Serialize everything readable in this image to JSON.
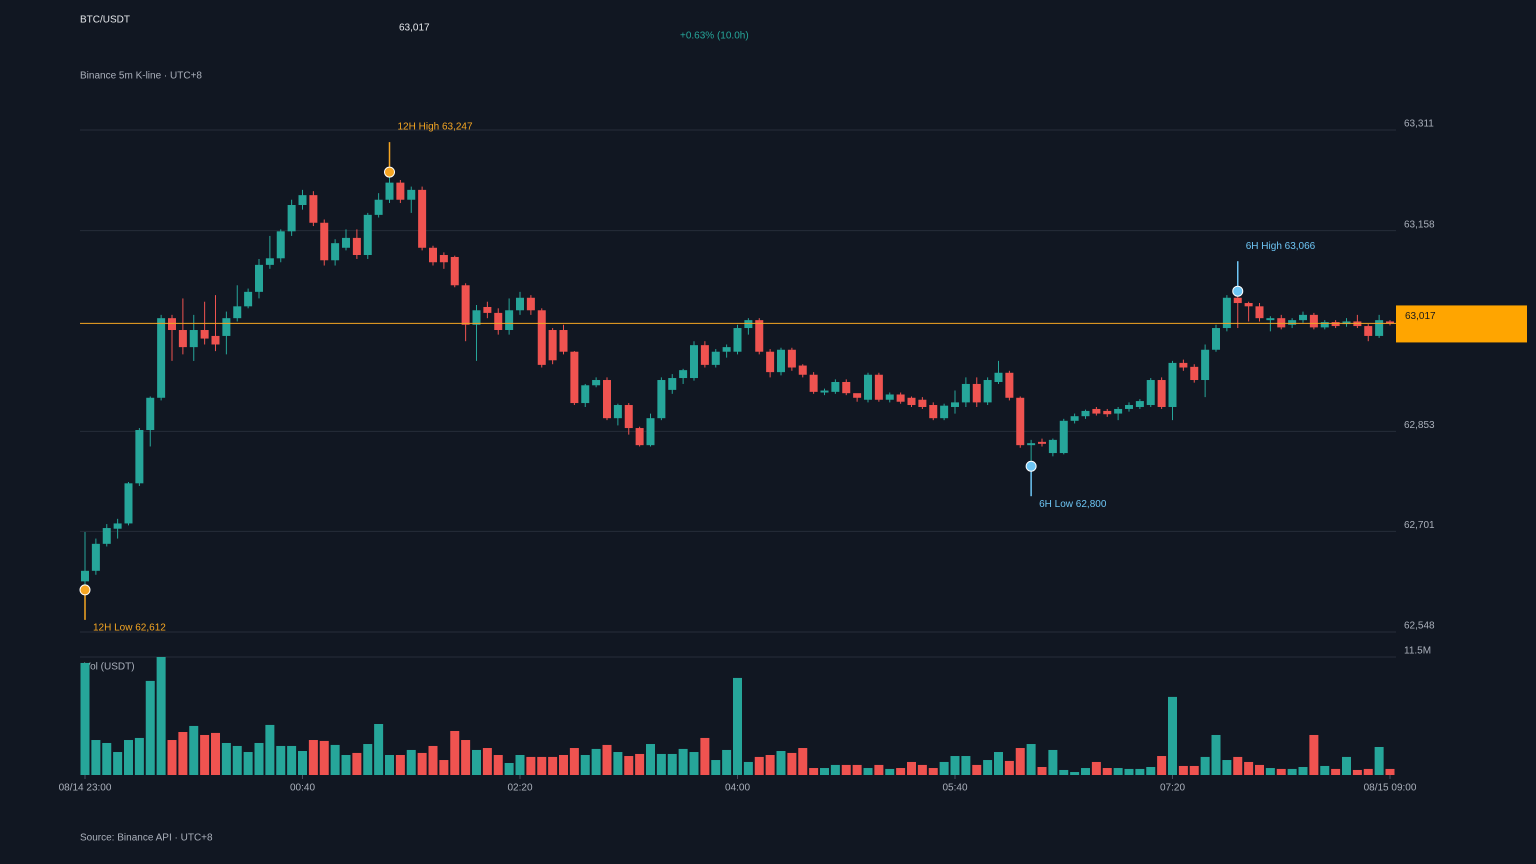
{
  "chart_data": {
    "type": "candlestick",
    "title": "BTC/USDT",
    "subtitle": "Binance 5m K-line · UTC+8",
    "change": "+0.63% (10.0h)",
    "source": "Source: Binance API · UTC+8",
    "current_price": {
      "value": 63017,
      "label": "63,017"
    },
    "up_color": "#26a69a",
    "down_color": "#ef5350",
    "grid": true,
    "ylim": [
      62548,
      63311
    ],
    "yticks": [
      {
        "value": 62548,
        "label": "62,548"
      },
      {
        "value": 62701,
        "label": "62,701"
      },
      {
        "value": 62853,
        "label": "62,853"
      },
      {
        "value": 63158,
        "label": "63,158"
      },
      {
        "value": 63311,
        "label": "63,311"
      }
    ],
    "categories": [
      "08/14 23:00",
      null,
      null,
      null,
      null,
      null,
      null,
      null,
      null,
      null,
      null,
      null,
      null,
      null,
      null,
      null,
      null,
      null,
      null,
      null,
      "00:40",
      null,
      null,
      null,
      null,
      null,
      null,
      null,
      null,
      null,
      null,
      null,
      null,
      null,
      null,
      null,
      null,
      null,
      null,
      null,
      "02:20",
      null,
      null,
      null,
      null,
      null,
      null,
      null,
      null,
      null,
      null,
      null,
      null,
      null,
      null,
      null,
      null,
      null,
      null,
      null,
      "04:00",
      null,
      null,
      null,
      null,
      null,
      null,
      null,
      null,
      null,
      null,
      null,
      null,
      null,
      null,
      null,
      null,
      null,
      null,
      null,
      "05:40",
      null,
      null,
      null,
      null,
      null,
      null,
      null,
      null,
      null,
      null,
      null,
      null,
      null,
      null,
      null,
      null,
      null,
      null,
      null,
      "07:20",
      null,
      null,
      null,
      null,
      null,
      null,
      null,
      null,
      null,
      null,
      null,
      null,
      null,
      null,
      null,
      null,
      null,
      null,
      null,
      "08/15 09:00"
    ],
    "open": [
      62625,
      62641,
      62682,
      62705,
      62713,
      62774,
      62855,
      62904,
      63025,
      63007,
      62981,
      63007,
      62998,
      62998,
      63025,
      63043,
      63065,
      63106,
      63116,
      63157,
      63197,
      63212,
      63170,
      63113,
      63132,
      63147,
      63121,
      63182,
      63205,
      63231,
      63205,
      63220,
      63132,
      63121,
      63118,
      63075,
      63015,
      63042,
      63033,
      63007,
      63037,
      63056,
      63037,
      63007,
      63007,
      62974,
      62896,
      62923,
      62931,
      62873,
      62893,
      62858,
      62832,
      62873,
      62916,
      62934,
      62934,
      62984,
      62954,
      62974,
      62974,
      63010,
      63022,
      62974,
      62943,
      62977,
      62953,
      62939,
      62912,
      62913,
      62928,
      62911,
      62901,
      62939,
      62901,
      62909,
      62904,
      62901,
      62893,
      62873,
      62890,
      62897,
      62925,
      62897,
      62928,
      62942,
      62904,
      62832,
      62837,
      62820,
      62820,
      62869,
      62876,
      62887,
      62884,
      62880,
      62887,
      62890,
      62893,
      62931,
      62890,
      62957,
      62951,
      62931,
      62977,
      63010,
      63056,
      63048,
      63043,
      63022,
      63025,
      63015,
      63022,
      63030,
      63011,
      63019,
      63016,
      63020,
      63013,
      62998,
      63020
    ],
    "high": [
      62700,
      62690,
      62712,
      62720,
      62776,
      62858,
      62906,
      63030,
      63030,
      63055,
      63030,
      63050,
      63060,
      63035,
      63075,
      63070,
      63115,
      63150,
      63160,
      63205,
      63220,
      63218,
      63175,
      63145,
      63160,
      63160,
      63185,
      63215,
      63247,
      63235,
      63225,
      63225,
      63135,
      63125,
      63120,
      63078,
      63045,
      63050,
      63040,
      63055,
      63065,
      63060,
      63040,
      63010,
      63015,
      62975,
      62925,
      62935,
      62935,
      62895,
      62896,
      62860,
      62880,
      62935,
      62940,
      62948,
      62990,
      62990,
      62978,
      62985,
      63015,
      63025,
      63025,
      62978,
      62980,
      62980,
      62955,
      62943,
      62918,
      62932,
      62932,
      62910,
      62942,
      62942,
      62912,
      62912,
      62906,
      62905,
      62897,
      62895,
      62915,
      62935,
      62935,
      62935,
      62960,
      62945,
      62906,
      62840,
      62842,
      62842,
      62872,
      62880,
      62886,
      62890,
      62887,
      62890,
      62897,
      62902,
      62934,
      62935,
      62960,
      62962,
      62955,
      62985,
      63015,
      63060,
      63066,
      63050,
      63048,
      63028,
      63030,
      63025,
      63035,
      63033,
      63022,
      63022,
      63025,
      63030,
      63016,
      63030,
      63022
    ],
    "low": [
      62612,
      62635,
      62678,
      62690,
      62710,
      62770,
      62830,
      62900,
      62960,
      62970,
      62960,
      62985,
      62975,
      62970,
      63020,
      63040,
      63055,
      63100,
      63110,
      63150,
      63190,
      63165,
      63105,
      63105,
      63128,
      63115,
      63115,
      63178,
      63200,
      63200,
      63185,
      63128,
      63105,
      63100,
      63072,
      62990,
      62960,
      63025,
      63000,
      63000,
      63030,
      63030,
      62950,
      62955,
      62970,
      62893,
      62890,
      62920,
      62870,
      62862,
      62848,
      62830,
      62830,
      62870,
      62910,
      62925,
      62930,
      62950,
      62950,
      62965,
      62970,
      63000,
      62970,
      62935,
      62938,
      62945,
      62935,
      62910,
      62908,
      62910,
      62908,
      62898,
      62897,
      62898,
      62897,
      62895,
      62890,
      62887,
      62870,
      62870,
      62880,
      62890,
      62890,
      62893,
      62925,
      62900,
      62828,
      62800,
      62830,
      62815,
      62818,
      62865,
      62872,
      62877,
      62875,
      62870,
      62883,
      62887,
      62890,
      62887,
      62870,
      62945,
      62927,
      62905,
      62974,
      63005,
      63010,
      63020,
      63020,
      63005,
      63008,
      63010,
      63018,
      63008,
      63008,
      63010,
      63012,
      63010,
      62990,
      62995,
      63014
    ],
    "close": [
      62641,
      62682,
      62706,
      62713,
      62774,
      62855,
      62904,
      63025,
      63007,
      62981,
      63007,
      62994,
      62985,
      63025,
      63043,
      63065,
      63106,
      63116,
      63157,
      63197,
      63212,
      63170,
      63113,
      63139,
      63147,
      63121,
      63182,
      63205,
      63231,
      63205,
      63220,
      63132,
      63110,
      63110,
      63075,
      63015,
      63037,
      63033,
      63007,
      63037,
      63056,
      63037,
      62954,
      62961,
      62974,
      62896,
      62923,
      62931,
      62873,
      62893,
      62858,
      62832,
      62873,
      62931,
      62934,
      62946,
      62984,
      62954,
      62974,
      62981,
      63010,
      63022,
      62974,
      62943,
      62977,
      62950,
      62939,
      62913,
      62915,
      62928,
      62911,
      62904,
      62939,
      62901,
      62909,
      62898,
      62893,
      62890,
      62873,
      62892,
      62897,
      62925,
      62897,
      62931,
      62942,
      62904,
      62832,
      62835,
      62834,
      62840,
      62869,
      62876,
      62884,
      62880,
      62879,
      62887,
      62893,
      62899,
      62931,
      62890,
      62957,
      62950,
      62931,
      62977,
      63010,
      63056,
      63048,
      63043,
      63025,
      63025,
      63011,
      63022,
      63030,
      63011,
      63019,
      63013,
      63020,
      63013,
      62998,
      63022,
      63017
    ],
    "volume": {
      "label": "Vol (USDT)",
      "ylim": [
        0,
        11.5
      ],
      "yticks": [
        {
          "value": 11.5,
          "label": "11.5M"
        }
      ],
      "values": [
        10.92,
        3.41,
        3.12,
        2.24,
        3.41,
        3.61,
        9.17,
        11.5,
        3.41,
        4.19,
        4.78,
        3.9,
        4.1,
        3.12,
        2.83,
        2.24,
        3.12,
        4.88,
        2.83,
        2.83,
        2.34,
        3.41,
        3.32,
        2.93,
        1.95,
        2.15,
        3.02,
        4.97,
        1.95,
        1.95,
        2.44,
        2.15,
        2.83,
        1.46,
        4.29,
        3.41,
        2.44,
        2.63,
        1.95,
        1.17,
        1.95,
        1.76,
        1.76,
        1.76,
        1.95,
        2.63,
        1.95,
        2.54,
        2.93,
        2.24,
        1.85,
        2.05,
        3.02,
        2.05,
        2.05,
        2.54,
        2.24,
        3.61,
        1.46,
        2.44,
        9.46,
        1.27,
        1.76,
        1.95,
        2.34,
        2.15,
        2.63,
        0.68,
        0.68,
        0.98,
        0.98,
        0.98,
        0.68,
        0.98,
        0.59,
        0.68,
        1.27,
        0.98,
        0.68,
        1.27,
        1.85,
        1.85,
        0.98,
        1.46,
        2.24,
        1.37,
        2.63,
        3.02,
        0.78,
        2.44,
        0.49,
        0.29,
        0.68,
        1.27,
        0.68,
        0.68,
        0.59,
        0.59,
        0.78,
        1.85,
        7.61,
        0.88,
        0.88,
        1.76,
        3.9,
        1.46,
        1.76,
        1.27,
        0.98,
        0.68,
        0.59,
        0.59,
        0.78,
        3.9,
        0.88,
        0.59,
        1.76,
        0.49,
        0.59,
        2.73,
        0.59
      ]
    },
    "annotations": [
      {
        "label": "12H High 63,247",
        "value": 63247,
        "index": 28,
        "kind": "high",
        "color": "#f5a623"
      },
      {
        "label": "12H Low 62,612",
        "value": 62612,
        "index": 0,
        "kind": "low",
        "color": "#f5a623"
      },
      {
        "label": "6H High 63,066",
        "value": 63066,
        "index": 106,
        "kind": "high",
        "color": "#6ec6f5"
      },
      {
        "label": "6H Low 62,800",
        "value": 62800,
        "index": 87,
        "kind": "low",
        "color": "#6ec6f5"
      }
    ]
  }
}
